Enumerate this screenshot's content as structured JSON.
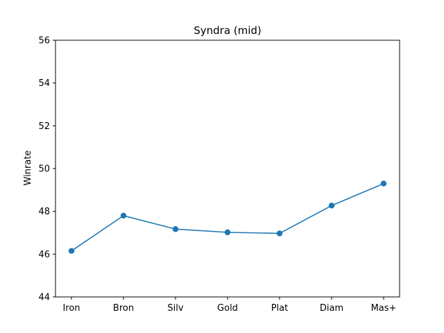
{
  "chart_data": {
    "type": "line",
    "title": "Syndra (mid)",
    "xlabel": "",
    "ylabel": "Winrate",
    "categories": [
      "Iron",
      "Bron",
      "Silv",
      "Gold",
      "Plat",
      "Diam",
      "Mas+"
    ],
    "values": [
      46.15,
      47.8,
      47.17,
      47.02,
      46.97,
      48.27,
      49.3
    ],
    "ylim": [
      44,
      56
    ],
    "yticks": [
      44,
      46,
      48,
      50,
      52,
      54,
      56
    ],
    "ytick_labels": [
      "44",
      "46",
      "48",
      "50",
      "52",
      "54",
      "56"
    ],
    "grid": false,
    "legend": "none",
    "line_color": "#1f77b4",
    "marker": "circle"
  }
}
